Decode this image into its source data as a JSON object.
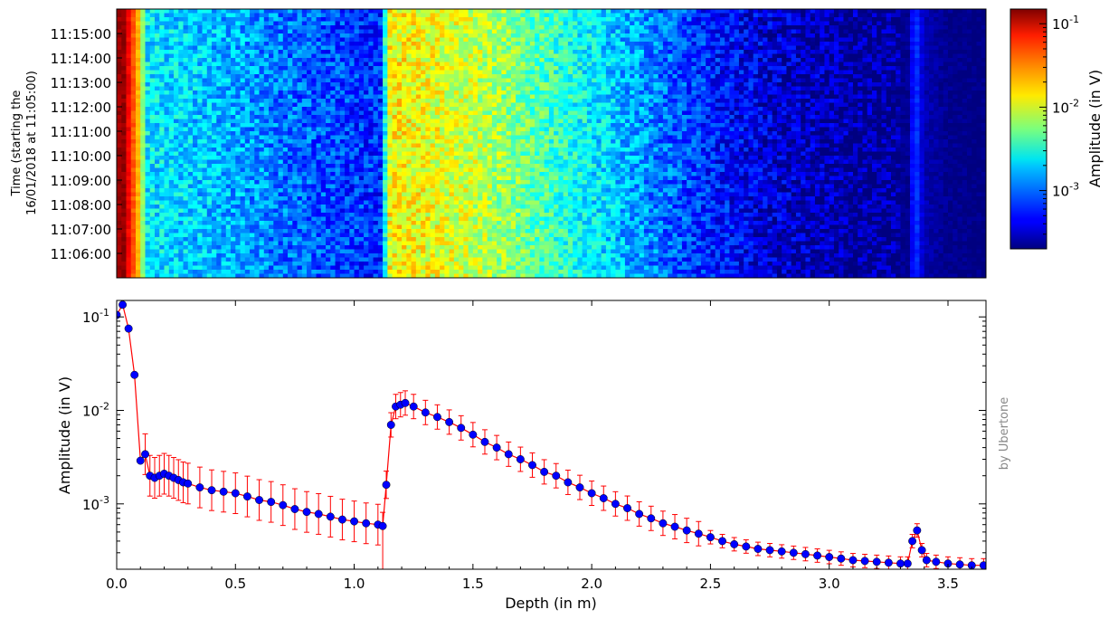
{
  "credit": "by Ubertone",
  "chart_data": [
    {
      "type": "heatmap",
      "ylabel_lines": [
        "Time (starting the",
        "16/01/2018 at 11:05:00)"
      ],
      "y_ticks": [
        "11:06:00",
        "11:07:00",
        "11:08:00",
        "11:09:00",
        "11:10:00",
        "11:11:00",
        "11:12:00",
        "11:13:00",
        "11:14:00",
        "11:15:00"
      ],
      "time_range_min": [
        0,
        11
      ],
      "x_range_m": [
        0,
        3.66
      ],
      "colorbar": {
        "label": "Amplitude (in V)",
        "scale": "log",
        "range": [
          0.0002,
          0.15
        ],
        "ticks": [
          {
            "value": 0.001,
            "base": "10",
            "exp": "-3"
          },
          {
            "value": 0.01,
            "base": "10",
            "exp": "-2"
          },
          {
            "value": 0.1,
            "base": "10",
            "exp": "-1"
          }
        ],
        "colormap": "jet"
      },
      "profile_m": [
        [
          0.0,
          0.12
        ],
        [
          0.03,
          0.13
        ],
        [
          0.06,
          0.05
        ],
        [
          0.09,
          0.02
        ],
        [
          0.11,
          0.006
        ],
        [
          0.12,
          0.0022
        ],
        [
          0.25,
          0.0019
        ],
        [
          0.5,
          0.0014
        ],
        [
          0.75,
          0.0009
        ],
        [
          1.0,
          0.00065
        ],
        [
          1.12,
          0.0006
        ],
        [
          1.14,
          0.012
        ],
        [
          1.2,
          0.013
        ],
        [
          1.5,
          0.009
        ],
        [
          1.75,
          0.0045
        ],
        [
          2.0,
          0.0022
        ],
        [
          2.25,
          0.0011
        ],
        [
          2.5,
          0.00055
        ],
        [
          2.75,
          0.00035
        ],
        [
          3.0,
          0.00027
        ],
        [
          3.2,
          0.00024
        ],
        [
          3.33,
          0.00022
        ],
        [
          3.35,
          0.00045
        ],
        [
          3.37,
          0.0006
        ],
        [
          3.4,
          0.00028
        ],
        [
          3.5,
          0.00022
        ],
        [
          3.66,
          0.0002
        ]
      ]
    },
    {
      "type": "line",
      "xlabel": "Depth (in m)",
      "ylabel": "Amplitude (in V)",
      "xlim": [
        0,
        3.66
      ],
      "ylim": [
        0.0002,
        0.15
      ],
      "yscale": "log",
      "x_ticks": [
        "0.0",
        "0.5",
        "1.0",
        "1.5",
        "2.0",
        "2.5",
        "3.0",
        "3.5"
      ],
      "y_ticks": [
        {
          "value": 0.001,
          "base": "10",
          "exp": "-3"
        },
        {
          "value": 0.01,
          "base": "10",
          "exp": "-2"
        },
        {
          "value": 0.1,
          "base": "10",
          "exp": "-1"
        }
      ],
      "grid": false,
      "colors": {
        "line": "#ff0000",
        "errorbar": "#ff0000",
        "marker": "#0000ff"
      },
      "series": [
        {
          "x": [
            0.0,
            0.025,
            0.05,
            0.075,
            0.1,
            0.12,
            0.14,
            0.16,
            0.18,
            0.2,
            0.22,
            0.24,
            0.26,
            0.28,
            0.3,
            0.35,
            0.4,
            0.45,
            0.5,
            0.55,
            0.6,
            0.65,
            0.7,
            0.75,
            0.8,
            0.85,
            0.9,
            0.95,
            1.0,
            1.05,
            1.1,
            1.12,
            1.135,
            1.155,
            1.175,
            1.195,
            1.215,
            1.25,
            1.3,
            1.35,
            1.4,
            1.45,
            1.5,
            1.55,
            1.6,
            1.65,
            1.7,
            1.75,
            1.8,
            1.85,
            1.9,
            1.95,
            2.0,
            2.05,
            2.1,
            2.15,
            2.2,
            2.25,
            2.3,
            2.35,
            2.4,
            2.45,
            2.5,
            2.55,
            2.6,
            2.65,
            2.7,
            2.75,
            2.8,
            2.85,
            2.9,
            2.95,
            3.0,
            3.05,
            3.1,
            3.15,
            3.2,
            3.25,
            3.3,
            3.33,
            3.35,
            3.37,
            3.39,
            3.41,
            3.45,
            3.5,
            3.55,
            3.6,
            3.65
          ],
          "y": [
            0.105,
            0.135,
            0.075,
            0.024,
            0.0029,
            0.0034,
            0.002,
            0.0019,
            0.002,
            0.0021,
            0.002,
            0.0019,
            0.0018,
            0.0017,
            0.00165,
            0.0015,
            0.0014,
            0.00135,
            0.0013,
            0.0012,
            0.0011,
            0.00105,
            0.00097,
            0.00088,
            0.00082,
            0.00078,
            0.00073,
            0.00068,
            0.00065,
            0.00062,
            0.0006,
            0.00058,
            0.0016,
            0.007,
            0.011,
            0.0115,
            0.012,
            0.011,
            0.0095,
            0.0085,
            0.0075,
            0.0065,
            0.0055,
            0.0046,
            0.004,
            0.0034,
            0.003,
            0.0026,
            0.0022,
            0.002,
            0.0017,
            0.0015,
            0.0013,
            0.00115,
            0.001,
            0.0009,
            0.00078,
            0.0007,
            0.00062,
            0.00057,
            0.00052,
            0.00048,
            0.00044,
            0.0004,
            0.00037,
            0.00035,
            0.00033,
            0.00032,
            0.00031,
            0.0003,
            0.00029,
            0.00028,
            0.00027,
            0.00026,
            0.00025,
            0.000245,
            0.00024,
            0.000235,
            0.00023,
            0.00023,
            0.0004,
            0.00052,
            0.00032,
            0.00025,
            0.00024,
            0.00023,
            0.000225,
            0.00022,
            0.00022
          ]
        }
      ]
    }
  ]
}
